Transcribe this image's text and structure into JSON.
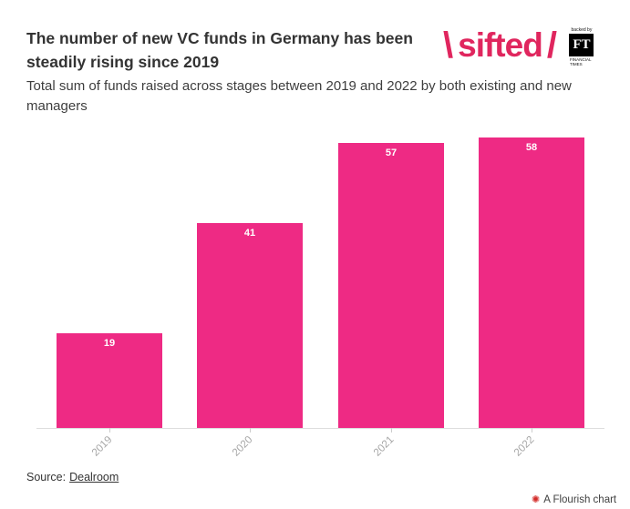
{
  "header": {
    "title": "The number of new VC funds in Germany has been steadily rising since 2019",
    "subtitle": "Total sum of funds raised across stages between 2019 and 2022 by both existing and new managers",
    "logo": {
      "backslash": "\\",
      "wordmark": "sifted",
      "slash": "/",
      "badge": {
        "top": "backed by",
        "monogram": "FT",
        "bottom": "FINANCIAL TIMES"
      }
    }
  },
  "chart_data": {
    "type": "bar",
    "categories": [
      "2019",
      "2020",
      "2021",
      "2022"
    ],
    "values": [
      19,
      41,
      57,
      58
    ],
    "value_labels": [
      "19",
      "41",
      "57",
      "58"
    ],
    "title": "The number of new VC funds in Germany has been steadily rising since 2019",
    "subtitle": "Total sum of funds raised across stages between 2019 and 2022 by both existing and new managers",
    "xlabel": "",
    "ylabel": "",
    "ylim": [
      0,
      60
    ],
    "grid": false,
    "legend": "none",
    "bar_color": "#ee2a84",
    "value_label_color": "#ffffff",
    "axis_label_color": "#a6a6a6"
  },
  "footer": {
    "source_prefix": "Source:",
    "source_link": "Dealroom",
    "credit": "A Flourish chart"
  },
  "colors": {
    "bar": "#ee2a84",
    "logo_pink": "#e0265e",
    "title_text": "#333333",
    "subtitle_text": "#3e3e3e",
    "axis_line": "#dddddd",
    "tick": "#cccccc",
    "axis_label": "#a6a6a6",
    "credit_icon": "#d32b28",
    "background": "#ffffff"
  }
}
